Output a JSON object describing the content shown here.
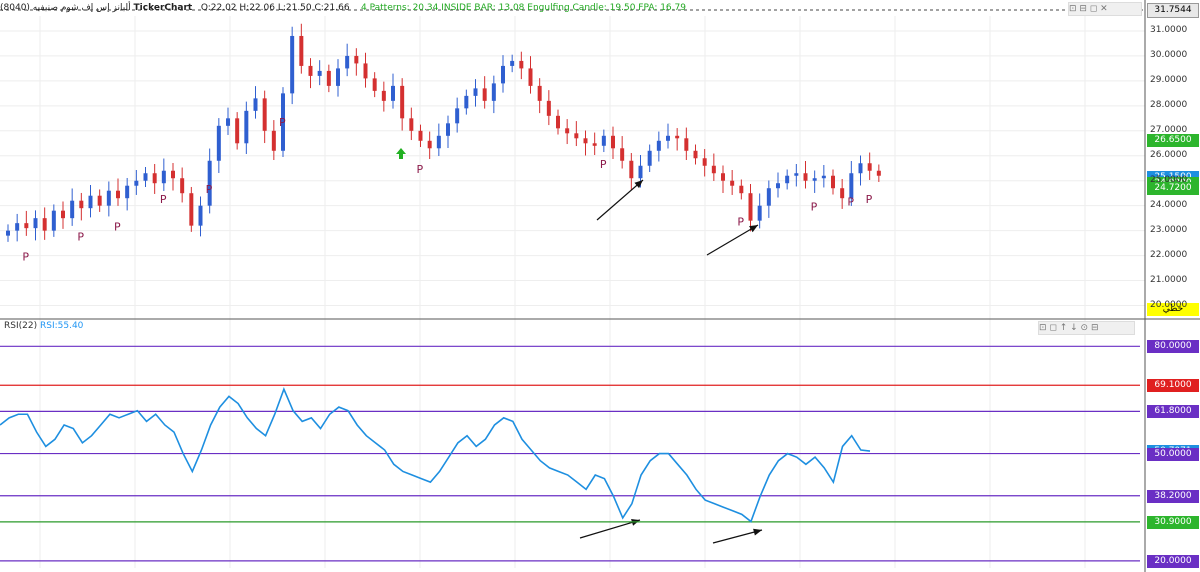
{
  "header": {
    "brand": "TickerChart",
    "symbol": "(8040) أليانز إس إف شوم صنيفيه",
    "ohlc": "O:22.02  H:22.06  L:21.50  C:21.66",
    "patterns": "4 Patterns: 20.34  INSIDE BAR: 13.08  Engulfing Candle: 19.50  FPA: 16.79"
  },
  "price_panel": {
    "current_price_tag": "31.7544",
    "axis_ticks": [
      "31.0000",
      "30.0000",
      "29.0000",
      "28.0000",
      "27.0000",
      "26.0000",
      "25.0000",
      "24.0000",
      "23.0000",
      "22.0000",
      "21.0000",
      "20.0000"
    ],
    "tags": [
      {
        "label": "26.6500",
        "color": "#2db52d",
        "value": 26.65
      },
      {
        "label": "25.1500",
        "color": "#1e8fe0",
        "value": 25.15
      },
      {
        "label": "24.9200",
        "color": "#2db52d",
        "value": 24.92
      },
      {
        "label": "24.7200",
        "color": "#2db52d",
        "value": 24.72
      }
    ],
    "bottom_tag": {
      "label": "خطي",
      "color": "#ffff00"
    }
  },
  "rsi_panel": {
    "title": "RSI(22)",
    "value_label": "RSI:55.40",
    "axis_tags": [
      {
        "label": "80.0000",
        "color": "#6a2fc4",
        "value": 80
      },
      {
        "label": "69.1000",
        "color": "#e02020",
        "value": 69.1
      },
      {
        "label": "61.8000",
        "color": "#6a2fc4",
        "value": 61.8
      },
      {
        "label": "50.7071",
        "color": "#1e8fe0",
        "value": 50.7071
      },
      {
        "label": "50.0000",
        "color": "#6a2fc4",
        "value": 50
      },
      {
        "label": "38.2000",
        "color": "#6a2fc4",
        "value": 38.2
      },
      {
        "label": "30.9000",
        "color": "#2db52d",
        "value": 30.9
      },
      {
        "label": "20.0000",
        "color": "#6a2fc4",
        "value": 20
      }
    ]
  },
  "chart_data": [
    {
      "type": "candlestick",
      "ylim": [
        19.5,
        31.6
      ],
      "close_series": [
        23.0,
        23.3,
        23.1,
        23.5,
        23.0,
        23.8,
        23.5,
        24.2,
        23.9,
        24.4,
        24.0,
        24.6,
        24.3,
        24.8,
        25.0,
        25.3,
        24.9,
        25.4,
        25.1,
        24.5,
        23.2,
        24.0,
        25.8,
        27.2,
        27.5,
        26.5,
        27.8,
        28.3,
        27.0,
        26.2,
        28.5,
        30.8,
        29.6,
        29.2,
        29.4,
        28.8,
        29.5,
        30.0,
        29.7,
        29.1,
        28.6,
        28.2,
        28.8,
        27.5,
        27.0,
        26.6,
        26.3,
        26.8,
        27.3,
        27.9,
        28.4,
        28.7,
        28.2,
        28.9,
        29.6,
        29.8,
        29.5,
        28.8,
        28.2,
        27.6,
        27.1,
        26.9,
        26.7,
        26.5,
        26.4,
        26.8,
        26.3,
        25.8,
        25.1,
        25.6,
        26.2,
        26.6,
        26.8,
        26.7,
        26.2,
        25.9,
        25.6,
        25.3,
        25.0,
        24.8,
        24.5,
        23.4,
        24.0,
        24.7,
        24.9,
        25.2,
        25.3,
        25.0,
        25.1,
        25.2,
        24.7,
        24.3,
        25.3,
        25.7,
        25.4,
        25.2
      ],
      "markers": [
        "P",
        "P",
        "P",
        "P",
        "P",
        "P",
        "P",
        "P",
        "P",
        "P",
        "P",
        "P"
      ]
    },
    {
      "type": "line",
      "title": "RSI(22)",
      "ylim": [
        18,
        84
      ],
      "values": [
        58,
        60,
        61,
        61,
        56,
        52,
        54,
        58,
        57,
        53,
        55,
        58,
        61,
        60,
        61,
        62,
        59,
        61,
        58,
        56,
        50,
        45,
        51,
        58,
        63,
        66,
        64,
        60,
        57,
        55,
        61,
        68,
        62,
        59,
        60,
        57,
        61,
        63,
        62,
        58,
        55,
        53,
        51,
        47,
        45,
        44,
        43,
        42,
        45,
        49,
        53,
        55,
        52,
        54,
        58,
        60,
        59,
        54,
        51,
        48,
        46,
        45,
        44,
        42,
        40,
        44,
        43,
        38,
        32,
        36,
        44,
        48,
        50,
        50,
        47,
        44,
        40,
        37,
        36,
        35,
        34,
        33,
        31,
        38,
        44,
        48,
        50,
        49,
        47,
        49,
        46,
        42,
        52,
        55,
        51,
        50.7
      ],
      "guide_lines": [
        80,
        69.1,
        61.8,
        50,
        38.2,
        30.9,
        20
      ]
    }
  ]
}
